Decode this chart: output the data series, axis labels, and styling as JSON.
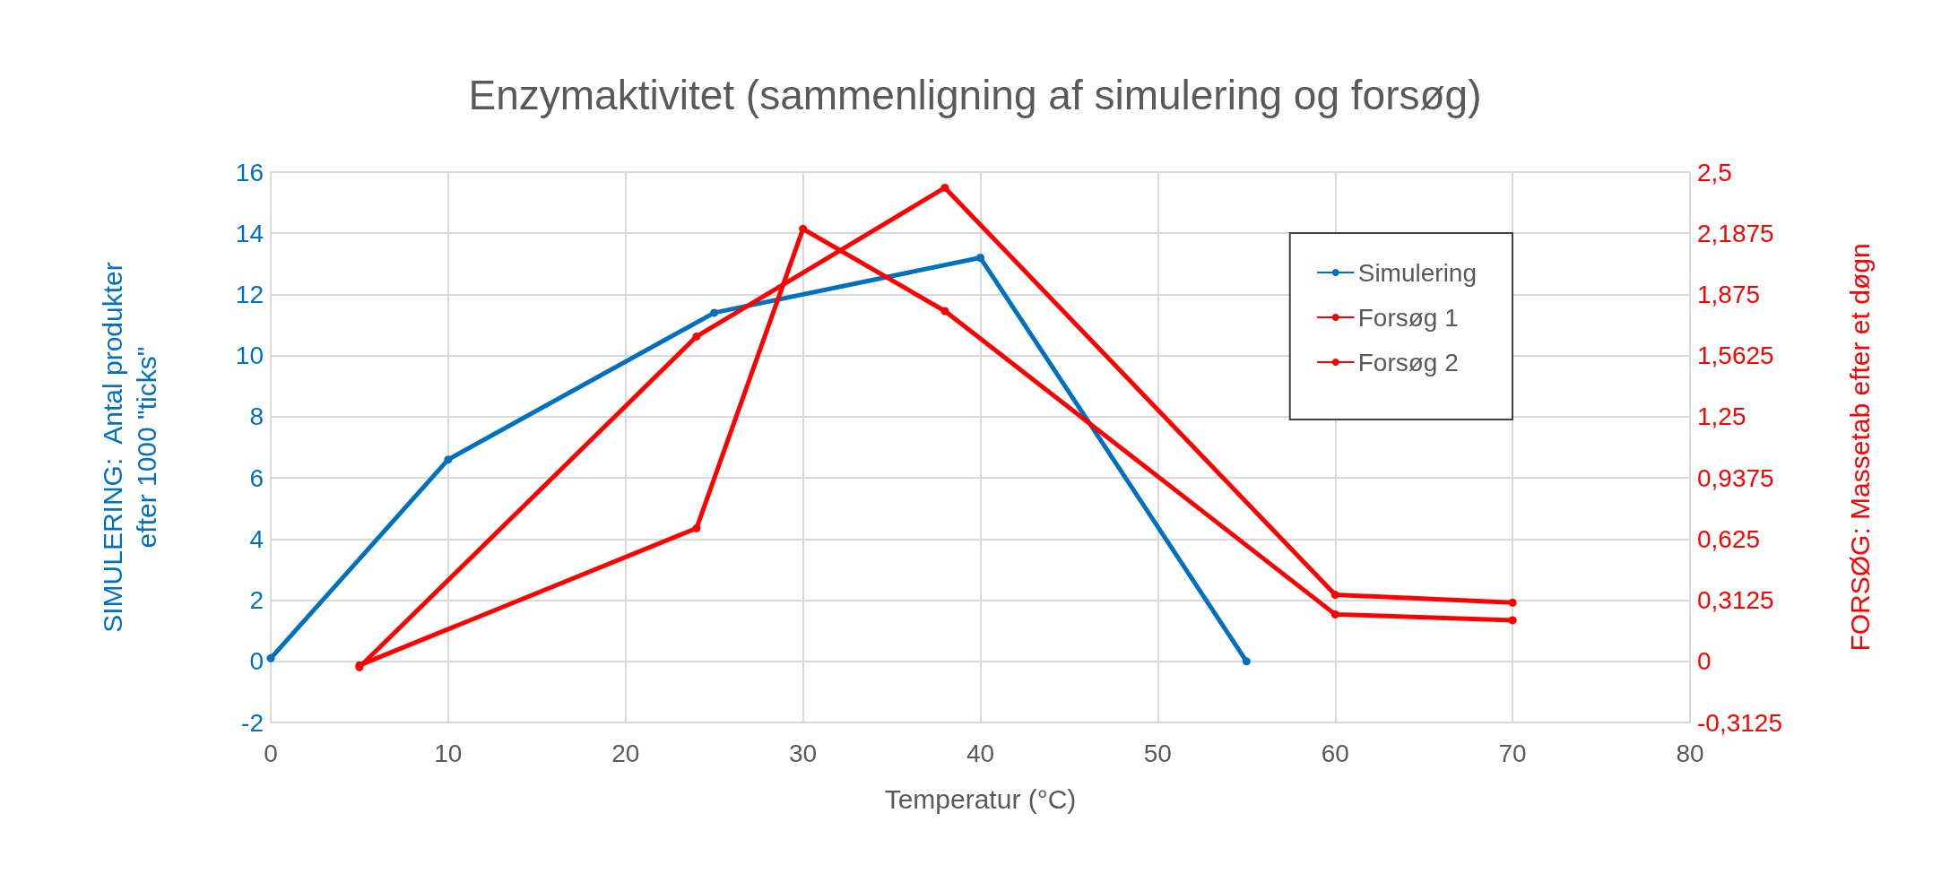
{
  "chart_data": {
    "type": "line",
    "title": "Enzymaktivitet (sammenligning af simulering og forsøg)",
    "xlabel": "Temperatur (°C)",
    "ylabel": "SIMULERING:  Antal produkter\nefter 1000 \"ticks\"",
    "y2label": "FORSØG: Massetab efter et døgn",
    "xlim": [
      0,
      80
    ],
    "xticks": [
      0,
      10,
      20,
      30,
      40,
      50,
      60,
      70,
      80
    ],
    "ylim": [
      -2,
      16
    ],
    "yticks": [
      -2,
      0,
      2,
      4,
      6,
      8,
      10,
      12,
      14,
      16
    ],
    "y2lim": [
      -0.3125,
      2.5
    ],
    "y2ticks": [
      {
        "value": -0.3125,
        "label": "-0,3125"
      },
      {
        "value": 0,
        "label": "0"
      },
      {
        "value": 0.3125,
        "label": "0,3125"
      },
      {
        "value": 0.625,
        "label": "0,625"
      },
      {
        "value": 0.9375,
        "label": "0,9375"
      },
      {
        "value": 1.25,
        "label": "1,25"
      },
      {
        "value": 1.5625,
        "label": "1,5625"
      },
      {
        "value": 1.875,
        "label": "1,875"
      },
      {
        "value": 2.1875,
        "label": "2,1875"
      },
      {
        "value": 2.5,
        "label": "2,5"
      }
    ],
    "grid": true,
    "legend": "top right",
    "marker": "circle",
    "line_style": "solid",
    "series": [
      {
        "name": "Simulering",
        "color": "#0070c0",
        "x": [
          0,
          10,
          25,
          40,
          55
        ],
        "values": [
          0.1,
          6.6,
          11.4,
          13.2,
          0
        ]
      },
      {
        "name": "Forsøg 1",
        "color": "#ff0000",
        "axis": "y2",
        "x": [
          5,
          24,
          30,
          38,
          60,
          70
        ],
        "values": [
          -0.02,
          0.68,
          2.21,
          1.79,
          0.24,
          0.21
        ]
      },
      {
        "name": "Forsøg 2",
        "color": "#ff0000",
        "axis": "y2",
        "x": [
          5,
          24,
          38,
          60,
          70
        ],
        "values": [
          -0.03,
          1.66,
          2.42,
          0.34,
          0.3
        ]
      }
    ]
  }
}
